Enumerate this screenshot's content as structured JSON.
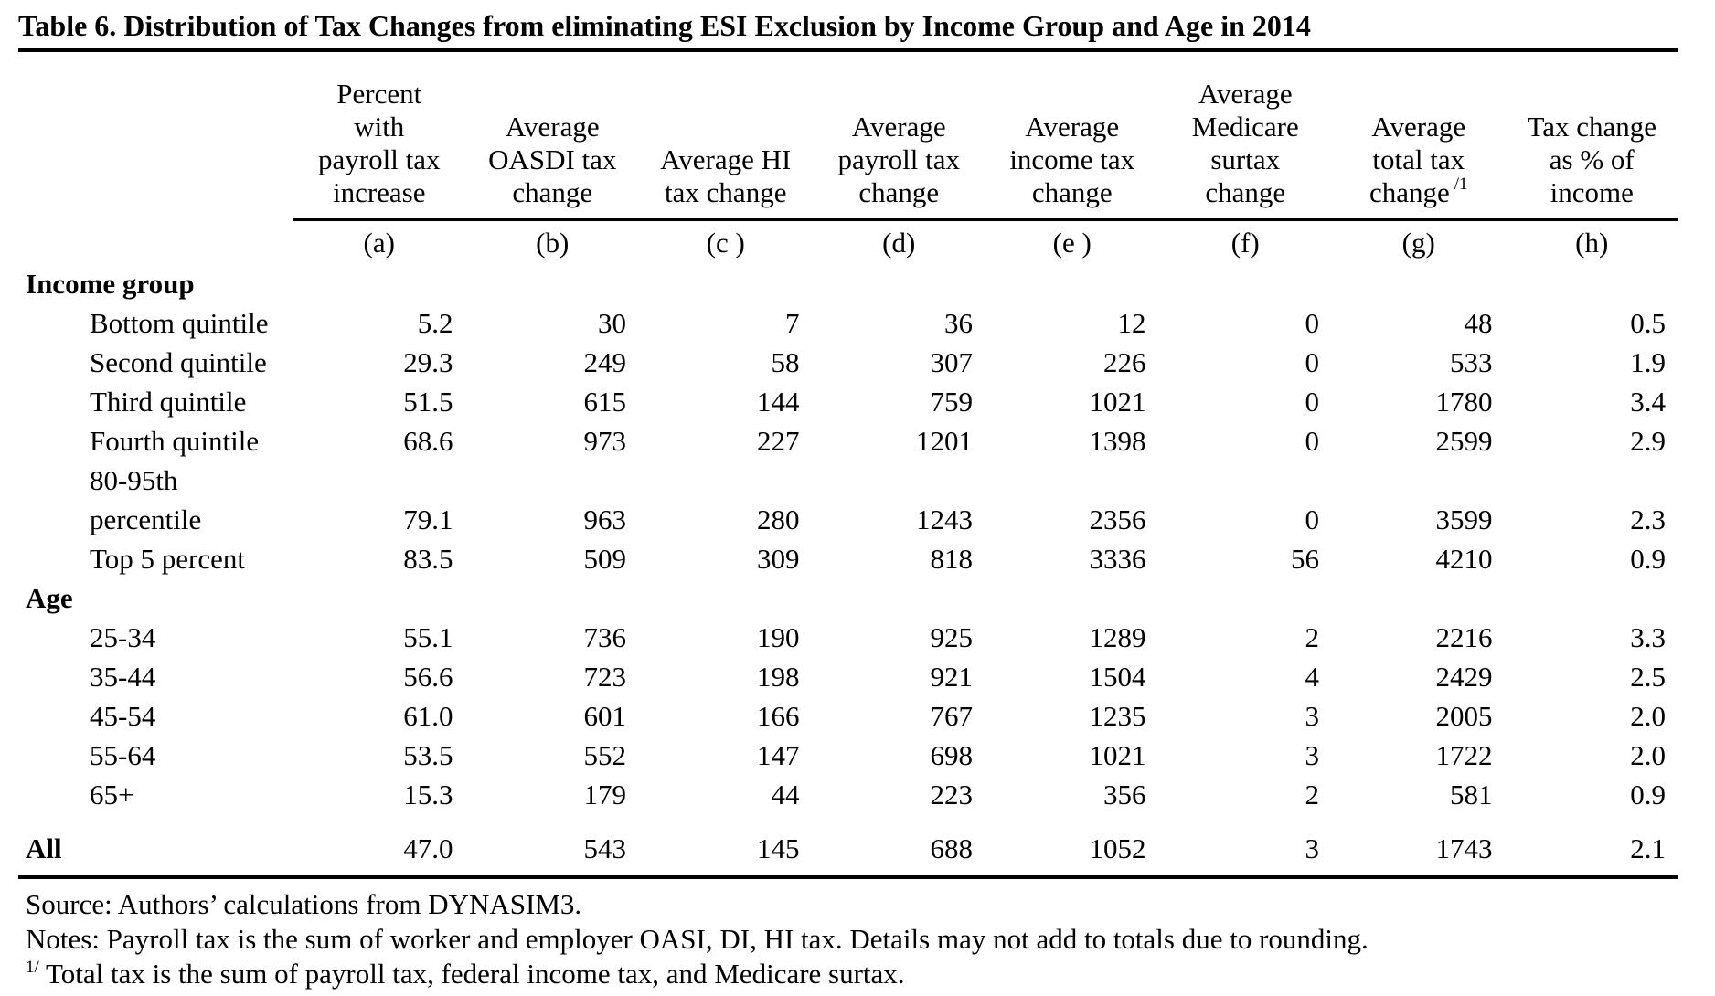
{
  "title": "Table 6. Distribution of Tax Changes from eliminating ESI Exclusion by Income Group and Age in 2014",
  "table": {
    "columns": [
      {
        "letter": "(a)",
        "label": [
          "Percent",
          "with",
          "payroll tax",
          "increase"
        ]
      },
      {
        "letter": "(b)",
        "label": [
          "Average",
          "OASDI tax",
          "change"
        ]
      },
      {
        "letter": "(c )",
        "label": [
          "Average HI",
          "tax change"
        ]
      },
      {
        "letter": "(d)",
        "label": [
          "Average",
          "payroll tax",
          "change"
        ]
      },
      {
        "letter": "(e )",
        "label": [
          "Average",
          "income tax",
          "change"
        ]
      },
      {
        "letter": "(f)",
        "label": [
          "Average",
          "Medicare",
          "surtax",
          "change"
        ]
      },
      {
        "letter": "(g)",
        "label": [
          "Average",
          "total tax",
          "change"
        ],
        "sup": "/1"
      },
      {
        "letter": "(h)",
        "label": [
          "Tax change",
          "as % of",
          "income"
        ]
      }
    ],
    "income_group": {
      "header": "Income group",
      "rows": [
        {
          "label": "Bottom quintile",
          "values": [
            "5.2",
            "30",
            "7",
            "36",
            "12",
            "0",
            "48",
            "0.5"
          ]
        },
        {
          "label": "Second quintile",
          "values": [
            "29.3",
            "249",
            "58",
            "307",
            "226",
            "0",
            "533",
            "1.9"
          ]
        },
        {
          "label": "Third quintile",
          "values": [
            "51.5",
            "615",
            "144",
            "759",
            "1021",
            "0",
            "1780",
            "3.4"
          ]
        },
        {
          "label": "Fourth quintile",
          "values": [
            "68.6",
            "973",
            "227",
            "1201",
            "1398",
            "0",
            "2599",
            "2.9"
          ]
        },
        {
          "label": [
            "80-95th",
            "percentile"
          ],
          "values": [
            "79.1",
            "963",
            "280",
            "1243",
            "2356",
            "0",
            "3599",
            "2.3"
          ]
        },
        {
          "label": "Top 5 percent",
          "values": [
            "83.5",
            "509",
            "309",
            "818",
            "3336",
            "56",
            "4210",
            "0.9"
          ]
        }
      ]
    },
    "age": {
      "header": "Age",
      "rows": [
        {
          "label": "25-34",
          "values": [
            "55.1",
            "736",
            "190",
            "925",
            "1289",
            "2",
            "2216",
            "3.3"
          ]
        },
        {
          "label": "35-44",
          "values": [
            "56.6",
            "723",
            "198",
            "921",
            "1504",
            "4",
            "2429",
            "2.5"
          ]
        },
        {
          "label": "45-54",
          "values": [
            "61.0",
            "601",
            "166",
            "767",
            "1235",
            "3",
            "2005",
            "2.0"
          ]
        },
        {
          "label": "55-64",
          "values": [
            "53.5",
            "552",
            "147",
            "698",
            "1021",
            "3",
            "1722",
            "2.0"
          ]
        },
        {
          "label": "65+",
          "values": [
            "15.3",
            "179",
            "44",
            "223",
            "356",
            "2",
            "581",
            "0.9"
          ]
        }
      ]
    },
    "all_row": {
      "label": "All",
      "values": [
        "47.0",
        "543",
        "145",
        "688",
        "1052",
        "3",
        "1743",
        "2.1"
      ]
    }
  },
  "footer": {
    "source": "Source: Authors’ calculations from DYNASIM3.",
    "notes": "Notes: Payroll tax is the sum of worker and employer OASI, DI, HI tax. Details may not add to totals due to rounding.",
    "note1_marker": "1/",
    "note1_text": "Total tax is the sum of payroll tax, federal income tax, and Medicare surtax."
  }
}
